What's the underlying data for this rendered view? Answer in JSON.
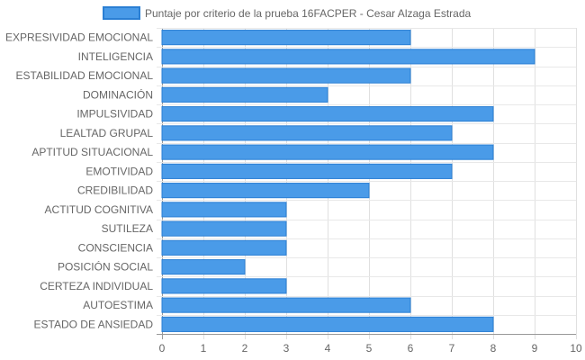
{
  "chart_data": {
    "type": "bar",
    "orientation": "horizontal",
    "categories": [
      "EXPRESIVIDAD EMOCIONAL",
      "INTELIGENCIA",
      "ESTABILIDAD EMOCIONAL",
      "DOMINACIÓN",
      "IMPULSIVIDAD",
      "LEALTAD GRUPAL",
      "APTITUD SITUACIONAL",
      "EMOTIVIDAD",
      "CREDIBILIDAD",
      "ACTITUD COGNITIVA",
      "SUTILEZA",
      "CONSCIENCIA",
      "POSICIÓN SOCIAL",
      "CERTEZA INDIVIDUAL",
      "AUTOESTIMA",
      "ESTADO DE ANSIEDAD"
    ],
    "series": [
      {
        "name": "Puntaje por criterio de la prueba 16FACPER - Cesar Alzaga Estrada",
        "values": [
          6,
          9,
          6,
          4,
          8,
          7,
          8,
          7,
          5,
          3,
          3,
          3,
          2,
          3,
          6,
          8
        ],
        "color": "#4a9be8",
        "border_color": "#2a7fd4"
      }
    ],
    "xlim": [
      0,
      10
    ],
    "x_ticks": [
      "0",
      "1",
      "2",
      "3",
      "4",
      "5",
      "6",
      "7",
      "8",
      "9",
      "10"
    ],
    "grid": true,
    "legend_position": "top"
  }
}
